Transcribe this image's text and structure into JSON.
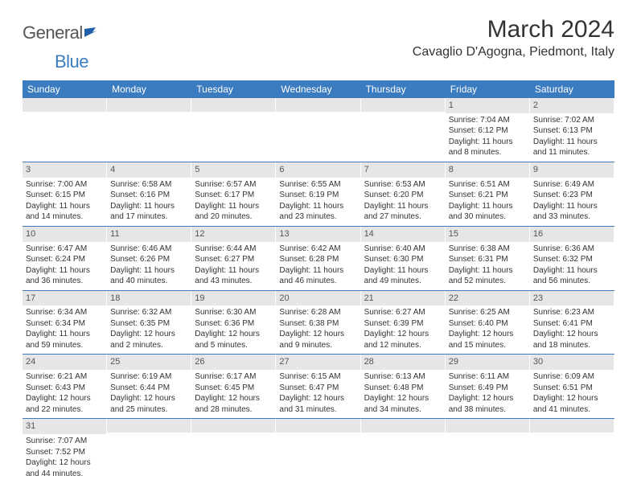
{
  "logo": {
    "text1": "General",
    "text2": "Blue"
  },
  "title": "March 2024",
  "location": "Cavaglio D'Agogna, Piedmont, Italy",
  "weekdays": [
    "Sunday",
    "Monday",
    "Tuesday",
    "Wednesday",
    "Thursday",
    "Friday",
    "Saturday"
  ],
  "colors": {
    "header_bg": "#3b7bbf",
    "header_fg": "#ffffff",
    "daynum_bg": "#e6e6e6",
    "row_border": "#3b7bbf"
  },
  "type": "calendar-table",
  "weeks": [
    [
      {
        "empty": true
      },
      {
        "empty": true
      },
      {
        "empty": true
      },
      {
        "empty": true
      },
      {
        "empty": true
      },
      {
        "n": "1",
        "sunrise": "Sunrise: 7:04 AM",
        "sunset": "Sunset: 6:12 PM",
        "daylight": "Daylight: 11 hours and 8 minutes."
      },
      {
        "n": "2",
        "sunrise": "Sunrise: 7:02 AM",
        "sunset": "Sunset: 6:13 PM",
        "daylight": "Daylight: 11 hours and 11 minutes."
      }
    ],
    [
      {
        "n": "3",
        "sunrise": "Sunrise: 7:00 AM",
        "sunset": "Sunset: 6:15 PM",
        "daylight": "Daylight: 11 hours and 14 minutes."
      },
      {
        "n": "4",
        "sunrise": "Sunrise: 6:58 AM",
        "sunset": "Sunset: 6:16 PM",
        "daylight": "Daylight: 11 hours and 17 minutes."
      },
      {
        "n": "5",
        "sunrise": "Sunrise: 6:57 AM",
        "sunset": "Sunset: 6:17 PM",
        "daylight": "Daylight: 11 hours and 20 minutes."
      },
      {
        "n": "6",
        "sunrise": "Sunrise: 6:55 AM",
        "sunset": "Sunset: 6:19 PM",
        "daylight": "Daylight: 11 hours and 23 minutes."
      },
      {
        "n": "7",
        "sunrise": "Sunrise: 6:53 AM",
        "sunset": "Sunset: 6:20 PM",
        "daylight": "Daylight: 11 hours and 27 minutes."
      },
      {
        "n": "8",
        "sunrise": "Sunrise: 6:51 AM",
        "sunset": "Sunset: 6:21 PM",
        "daylight": "Daylight: 11 hours and 30 minutes."
      },
      {
        "n": "9",
        "sunrise": "Sunrise: 6:49 AM",
        "sunset": "Sunset: 6:23 PM",
        "daylight": "Daylight: 11 hours and 33 minutes."
      }
    ],
    [
      {
        "n": "10",
        "sunrise": "Sunrise: 6:47 AM",
        "sunset": "Sunset: 6:24 PM",
        "daylight": "Daylight: 11 hours and 36 minutes."
      },
      {
        "n": "11",
        "sunrise": "Sunrise: 6:46 AM",
        "sunset": "Sunset: 6:26 PM",
        "daylight": "Daylight: 11 hours and 40 minutes."
      },
      {
        "n": "12",
        "sunrise": "Sunrise: 6:44 AM",
        "sunset": "Sunset: 6:27 PM",
        "daylight": "Daylight: 11 hours and 43 minutes."
      },
      {
        "n": "13",
        "sunrise": "Sunrise: 6:42 AM",
        "sunset": "Sunset: 6:28 PM",
        "daylight": "Daylight: 11 hours and 46 minutes."
      },
      {
        "n": "14",
        "sunrise": "Sunrise: 6:40 AM",
        "sunset": "Sunset: 6:30 PM",
        "daylight": "Daylight: 11 hours and 49 minutes."
      },
      {
        "n": "15",
        "sunrise": "Sunrise: 6:38 AM",
        "sunset": "Sunset: 6:31 PM",
        "daylight": "Daylight: 11 hours and 52 minutes."
      },
      {
        "n": "16",
        "sunrise": "Sunrise: 6:36 AM",
        "sunset": "Sunset: 6:32 PM",
        "daylight": "Daylight: 11 hours and 56 minutes."
      }
    ],
    [
      {
        "n": "17",
        "sunrise": "Sunrise: 6:34 AM",
        "sunset": "Sunset: 6:34 PM",
        "daylight": "Daylight: 11 hours and 59 minutes."
      },
      {
        "n": "18",
        "sunrise": "Sunrise: 6:32 AM",
        "sunset": "Sunset: 6:35 PM",
        "daylight": "Daylight: 12 hours and 2 minutes."
      },
      {
        "n": "19",
        "sunrise": "Sunrise: 6:30 AM",
        "sunset": "Sunset: 6:36 PM",
        "daylight": "Daylight: 12 hours and 5 minutes."
      },
      {
        "n": "20",
        "sunrise": "Sunrise: 6:28 AM",
        "sunset": "Sunset: 6:38 PM",
        "daylight": "Daylight: 12 hours and 9 minutes."
      },
      {
        "n": "21",
        "sunrise": "Sunrise: 6:27 AM",
        "sunset": "Sunset: 6:39 PM",
        "daylight": "Daylight: 12 hours and 12 minutes."
      },
      {
        "n": "22",
        "sunrise": "Sunrise: 6:25 AM",
        "sunset": "Sunset: 6:40 PM",
        "daylight": "Daylight: 12 hours and 15 minutes."
      },
      {
        "n": "23",
        "sunrise": "Sunrise: 6:23 AM",
        "sunset": "Sunset: 6:41 PM",
        "daylight": "Daylight: 12 hours and 18 minutes."
      }
    ],
    [
      {
        "n": "24",
        "sunrise": "Sunrise: 6:21 AM",
        "sunset": "Sunset: 6:43 PM",
        "daylight": "Daylight: 12 hours and 22 minutes."
      },
      {
        "n": "25",
        "sunrise": "Sunrise: 6:19 AM",
        "sunset": "Sunset: 6:44 PM",
        "daylight": "Daylight: 12 hours and 25 minutes."
      },
      {
        "n": "26",
        "sunrise": "Sunrise: 6:17 AM",
        "sunset": "Sunset: 6:45 PM",
        "daylight": "Daylight: 12 hours and 28 minutes."
      },
      {
        "n": "27",
        "sunrise": "Sunrise: 6:15 AM",
        "sunset": "Sunset: 6:47 PM",
        "daylight": "Daylight: 12 hours and 31 minutes."
      },
      {
        "n": "28",
        "sunrise": "Sunrise: 6:13 AM",
        "sunset": "Sunset: 6:48 PM",
        "daylight": "Daylight: 12 hours and 34 minutes."
      },
      {
        "n": "29",
        "sunrise": "Sunrise: 6:11 AM",
        "sunset": "Sunset: 6:49 PM",
        "daylight": "Daylight: 12 hours and 38 minutes."
      },
      {
        "n": "30",
        "sunrise": "Sunrise: 6:09 AM",
        "sunset": "Sunset: 6:51 PM",
        "daylight": "Daylight: 12 hours and 41 minutes."
      }
    ],
    [
      {
        "n": "31",
        "sunrise": "Sunrise: 7:07 AM",
        "sunset": "Sunset: 7:52 PM",
        "daylight": "Daylight: 12 hours and 44 minutes."
      },
      {
        "empty": true
      },
      {
        "empty": true
      },
      {
        "empty": true
      },
      {
        "empty": true
      },
      {
        "empty": true
      },
      {
        "empty": true
      }
    ]
  ]
}
